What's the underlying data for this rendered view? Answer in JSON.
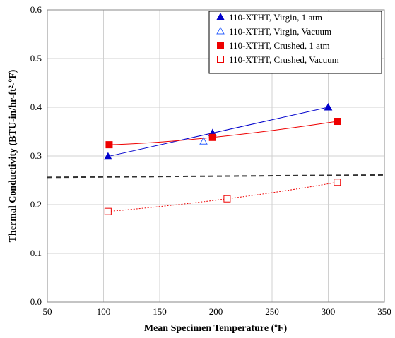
{
  "chart_data": {
    "type": "scatter",
    "xlabel": "Mean Specimen Temperature (ºF)",
    "ylabel": "Thermal Conductivity (BTU-in/hr-ft²-ºF)",
    "xlim": [
      50,
      350
    ],
    "ylim": [
      0.0,
      0.6
    ],
    "xticks": [
      "50",
      "100",
      "150",
      "200",
      "250",
      "300",
      "350"
    ],
    "yticks": [
      "0.0",
      "0.1",
      "0.2",
      "0.3",
      "0.4",
      "0.5",
      "0.6"
    ],
    "grid": true,
    "legend_position": "top-right",
    "series": [
      {
        "name": "110-XTHT, Virgin, 1 atm",
        "marker": "triangle-filled",
        "color": "#0000CC",
        "points": [
          [
            104,
            0.299
          ],
          [
            197,
            0.347
          ],
          [
            300,
            0.4
          ]
        ],
        "trendline": true
      },
      {
        "name": "110-XTHT, Virgin, Vacuum",
        "marker": "triangle-open",
        "color": "#3366FF",
        "points": [
          [
            189,
            0.33
          ]
        ],
        "trendline": false
      },
      {
        "name": "110-XTHT, Crushed, 1 atm",
        "marker": "square-filled",
        "color": "#EE0000",
        "points": [
          [
            105,
            0.323
          ],
          [
            197,
            0.338
          ],
          [
            308,
            0.371
          ]
        ],
        "trendline": true
      },
      {
        "name": "110-XTHT, Crushed, Vacuum",
        "marker": "square-open",
        "color": "#EE0000",
        "points": [
          [
            104,
            0.186
          ],
          [
            210,
            0.212
          ],
          [
            308,
            0.246
          ]
        ],
        "trendline": true,
        "trendline_style": "dotted"
      }
    ],
    "reference_line": {
      "style": "dashed",
      "color": "#333333",
      "from": [
        50,
        0.256
      ],
      "to": [
        350,
        0.261
      ]
    }
  }
}
